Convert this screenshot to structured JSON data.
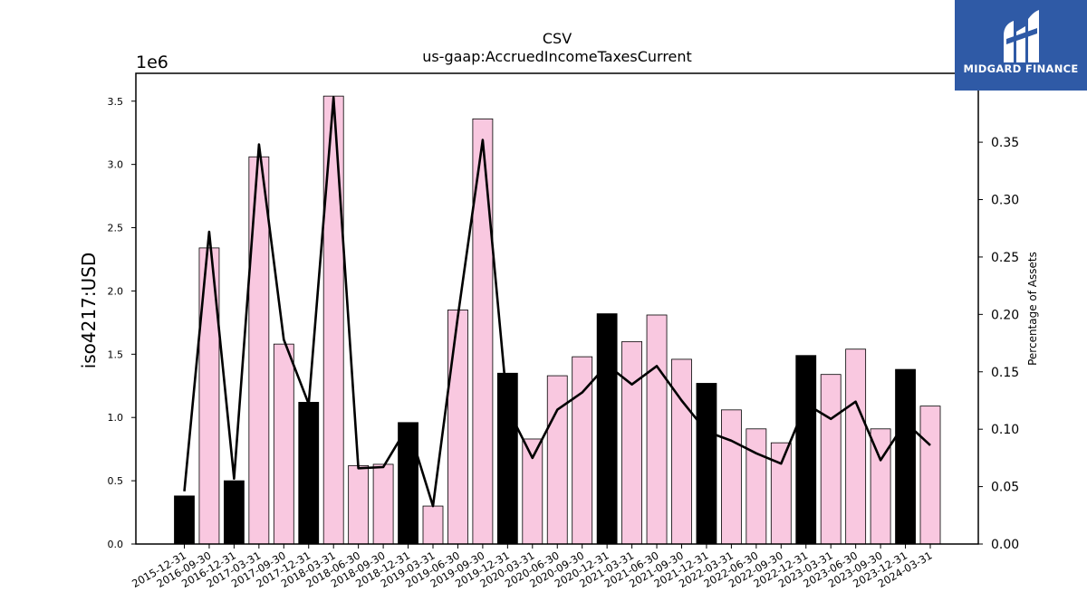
{
  "chart_data": {
    "type": "bar",
    "title": "CSV",
    "subtitle": "us-gaap:AccruedIncomeTaxesCurrent",
    "ylabel": "iso4217:USD",
    "y_offset_label": "1e6",
    "y2label": "Percentage of Assets",
    "ylim": [
      0,
      3.72
    ],
    "y2lim": [
      0,
      0.41
    ],
    "yticks": [
      "0.0",
      "0.5",
      "1.0",
      "1.5",
      "2.0",
      "2.5",
      "3.0",
      "3.5"
    ],
    "y2ticks": [
      "0.00",
      "0.05",
      "0.10",
      "0.15",
      "0.20",
      "0.25",
      "0.30",
      "0.35"
    ],
    "categories": [
      "2015-12-31",
      "2016-09-30",
      "2016-12-31",
      "2017-03-31",
      "2017-09-30",
      "2017-12-31",
      "2018-03-31",
      "2018-06-30",
      "2018-09-30",
      "2018-12-31",
      "2019-03-31",
      "2019-06-30",
      "2019-09-30",
      "2019-12-31",
      "2020-03-31",
      "2020-06-30",
      "2020-09-30",
      "2020-12-31",
      "2021-03-31",
      "2021-06-30",
      "2021-09-30",
      "2021-12-31",
      "2022-03-31",
      "2022-06-30",
      "2022-09-30",
      "2022-12-31",
      "2023-03-31",
      "2023-06-30",
      "2023-09-30",
      "2023-12-31",
      "2024-03-31"
    ],
    "values": [
      0.38,
      2.34,
      0.5,
      3.06,
      1.58,
      1.12,
      3.54,
      0.62,
      0.63,
      0.96,
      0.3,
      1.85,
      3.36,
      1.35,
      0.83,
      1.33,
      1.48,
      1.82,
      1.6,
      1.81,
      1.46,
      1.27,
      1.06,
      0.91,
      0.8,
      1.49,
      1.34,
      1.54,
      0.91,
      1.38,
      1.09
    ],
    "bar_colors": [
      "#000000",
      "#f9c8e0",
      "#000000",
      "#f9c8e0",
      "#f9c8e0",
      "#000000",
      "#f9c8e0",
      "#f9c8e0",
      "#f9c8e0",
      "#000000",
      "#f9c8e0",
      "#f9c8e0",
      "#f9c8e0",
      "#000000",
      "#f9c8e0",
      "#f9c8e0",
      "#f9c8e0",
      "#000000",
      "#f9c8e0",
      "#f9c8e0",
      "#f9c8e0",
      "#000000",
      "#f9c8e0",
      "#f9c8e0",
      "#f9c8e0",
      "#000000",
      "#f9c8e0",
      "#f9c8e0",
      "#f9c8e0",
      "#000000",
      "#f9c8e0"
    ],
    "series": [
      {
        "axis": "right",
        "type": "line",
        "values": [
          0.046,
          0.272,
          0.057,
          0.348,
          0.178,
          0.122,
          0.389,
          0.066,
          0.067,
          0.103,
          0.033,
          0.198,
          0.352,
          0.118,
          0.075,
          0.117,
          0.132,
          0.156,
          0.139,
          0.155,
          0.125,
          0.098,
          0.09,
          0.079,
          0.07,
          0.122,
          0.109,
          0.124,
          0.073,
          0.106,
          0.086
        ]
      }
    ],
    "grid": false,
    "legend": "none"
  },
  "colors": {
    "quarter_end_bar": "#000000",
    "other_bar": "#f9c8e0",
    "line": "#000000",
    "logo_bg": "#2f5aa6"
  },
  "logo": {
    "text": "MIDGARD FINANCE",
    "icon": "midgard-logo-icon"
  }
}
